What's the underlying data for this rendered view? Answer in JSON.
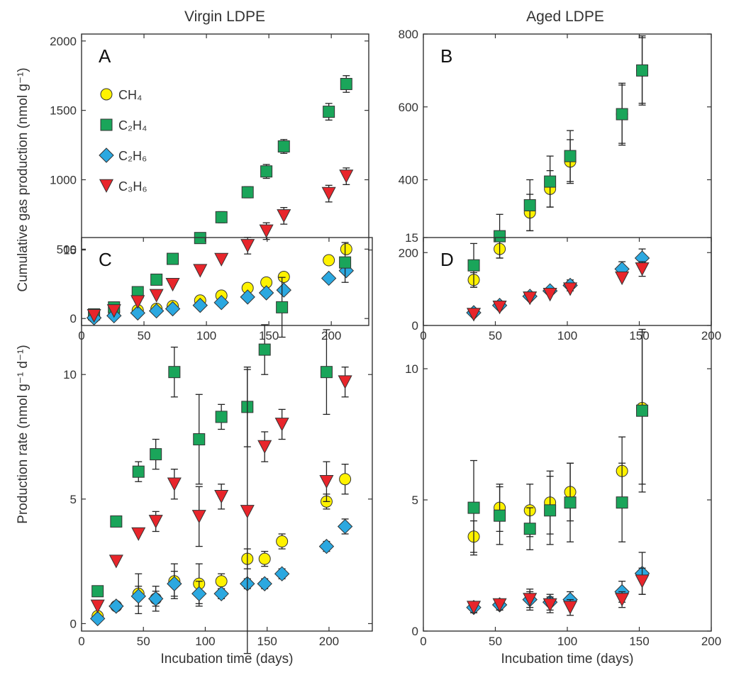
{
  "figure": {
    "column_titles": [
      "Virgin LDPE",
      "Aged LDPE"
    ]
  },
  "colors": {
    "CH4": "#FFF200",
    "C2H4": "#1AA55A",
    "C2H6": "#2BA8E0",
    "C3H6": "#E8252B"
  },
  "chart_data": [
    {
      "panel": "A",
      "type": "scatter",
      "title": "",
      "xlabel": "",
      "ylabel": "Cumulative gas production (nmol g⁻¹)",
      "xlim": [
        0,
        230
      ],
      "ylim": [
        -50,
        2050
      ],
      "xticks": [
        0,
        50,
        100,
        150,
        200
      ],
      "yticks": [
        0,
        500,
        1000,
        1500,
        2000
      ],
      "grid": false,
      "legend": "top-left",
      "x": [
        10,
        26,
        45,
        60,
        73,
        95,
        112,
        133,
        148,
        162,
        198,
        212
      ],
      "series": [
        {
          "name": "CH₄",
          "key": "CH4",
          "marker": "circle",
          "y": [
            10,
            50,
            60,
            70,
            90,
            130,
            165,
            220,
            260,
            300,
            420,
            500
          ],
          "err": [
            0,
            0,
            0,
            0,
            0,
            15,
            20,
            20,
            25,
            30,
            30,
            25
          ]
        },
        {
          "name": "C₂H₄",
          "key": "C2H4",
          "marker": "square",
          "y": [
            30,
            80,
            190,
            280,
            430,
            580,
            730,
            910,
            1060,
            1240,
            1490,
            1690
          ],
          "err": [
            0,
            0,
            0,
            0,
            0,
            30,
            40,
            40,
            50,
            50,
            60,
            60
          ]
        },
        {
          "name": "C₂H₆",
          "key": "C2H6",
          "marker": "diamond",
          "y": [
            5,
            20,
            40,
            55,
            70,
            95,
            115,
            155,
            185,
            205,
            290,
            345
          ],
          "err": [
            0,
            0,
            0,
            0,
            0,
            0,
            0,
            0,
            0,
            0,
            0,
            0
          ]
        },
        {
          "name": "C₃H₆",
          "key": "C3H6",
          "marker": "triangle-down",
          "y": [
            20,
            55,
            120,
            165,
            245,
            345,
            425,
            525,
            630,
            740,
            900,
            1025
          ],
          "err": [
            0,
            0,
            0,
            0,
            0,
            0,
            0,
            60,
            60,
            60,
            60,
            60
          ]
        }
      ]
    },
    {
      "panel": "B",
      "type": "scatter",
      "title": "",
      "xlabel": "",
      "ylabel": "",
      "xlim": [
        0,
        200
      ],
      "ylim": [
        0,
        800
      ],
      "xticks": [
        0,
        50,
        100,
        150,
        200
      ],
      "yticks": [
        0,
        200,
        400,
        600,
        800
      ],
      "grid": false,
      "x": [
        35,
        53,
        74,
        88,
        102,
        138,
        152
      ],
      "series": [
        {
          "name": "CH₄",
          "key": "CH4",
          "marker": "circle",
          "y": [
            125,
            210,
            310,
            375,
            450,
            580,
            700
          ],
          "err": [
            20,
            25,
            50,
            50,
            60,
            80,
            90
          ]
        },
        {
          "name": "C₂H₄",
          "key": "C2H4",
          "marker": "square",
          "y": [
            165,
            245,
            330,
            395,
            465,
            580,
            700
          ],
          "err": [
            60,
            60,
            70,
            70,
            70,
            85,
            95
          ]
        },
        {
          "name": "C₂H₆",
          "key": "C2H6",
          "marker": "diamond",
          "y": [
            35,
            55,
            80,
            95,
            110,
            155,
            185
          ],
          "err": [
            0,
            0,
            0,
            0,
            15,
            20,
            25
          ]
        },
        {
          "name": "C₃H₆",
          "key": "C3H6",
          "marker": "triangle-down",
          "y": [
            30,
            50,
            75,
            85,
            100,
            130,
            155
          ],
          "err": [
            0,
            0,
            0,
            0,
            0,
            0,
            20
          ]
        }
      ]
    },
    {
      "panel": "C",
      "type": "scatter",
      "title": "",
      "xlabel": "Incubation time (days)",
      "ylabel": "Production rate (nmol g⁻¹ d⁻¹)",
      "xlim": [
        0,
        235
      ],
      "ylim": [
        -0.3,
        15.5
      ],
      "xticks": [
        0,
        50,
        100,
        150,
        200
      ],
      "yticks": [
        0,
        5,
        10,
        15
      ],
      "grid": false,
      "x": [
        13,
        28,
        46,
        60,
        75,
        95,
        113,
        134,
        148,
        162,
        198,
        213
      ],
      "series": [
        {
          "name": "CH₄",
          "key": "CH4",
          "marker": "circle",
          "y": [
            0.3,
            0.7,
            1.2,
            1.0,
            1.7,
            1.6,
            1.7,
            2.6,
            2.6,
            3.3,
            4.9,
            5.8
          ],
          "err": [
            0,
            0,
            0.8,
            0.5,
            0.7,
            0.8,
            0.3,
            0.4,
            0.3,
            0.3,
            0.3,
            0.6
          ]
        },
        {
          "name": "C₂H₄",
          "key": "C2H4",
          "marker": "square",
          "y": [
            1.3,
            4.1,
            6.1,
            6.8,
            10.1,
            7.4,
            8.3,
            8.7,
            11.0,
            12.7,
            10.1,
            14.5
          ],
          "err": [
            0,
            0,
            0.4,
            0.6,
            1.0,
            1.8,
            0.5,
            1.6,
            1.0,
            1.2,
            1.7,
            0.8
          ]
        },
        {
          "name": "C₂H₆",
          "key": "C2H6",
          "marker": "diamond",
          "y": [
            0.2,
            0.7,
            1.1,
            1.0,
            1.6,
            1.2,
            1.2,
            1.6,
            1.6,
            2.0,
            3.1,
            3.9
          ],
          "err": [
            0,
            0,
            0.4,
            0.3,
            0.5,
            0.5,
            0.2,
            0.2,
            0.2,
            0.2,
            0.2,
            0.3
          ]
        },
        {
          "name": "C₃H₆",
          "key": "C3H6",
          "marker": "triangle-down",
          "y": [
            0.7,
            2.5,
            3.6,
            4.1,
            5.6,
            4.3,
            5.1,
            4.5,
            7.1,
            8.0,
            5.7,
            9.7
          ],
          "err": [
            0,
            0,
            0,
            0.4,
            0.6,
            1.2,
            0.5,
            5.7,
            0.6,
            0.6,
            0.8,
            0.6
          ]
        }
      ]
    },
    {
      "panel": "D",
      "type": "scatter",
      "title": "",
      "xlabel": "Incubation time (days)",
      "ylabel": "",
      "xlim": [
        0,
        200
      ],
      "ylim": [
        0,
        15
      ],
      "xticks": [
        0,
        50,
        100,
        150,
        200
      ],
      "yticks": [
        0,
        5,
        10,
        15
      ],
      "grid": false,
      "x": [
        35,
        53,
        74,
        88,
        102,
        138,
        152
      ],
      "series": [
        {
          "name": "CH₄",
          "key": "CH4",
          "marker": "circle",
          "y": [
            3.6,
            4.7,
            4.6,
            4.9,
            5.3,
            6.1,
            8.5
          ],
          "err": [
            0.6,
            0.9,
            1.0,
            1.2,
            1.1,
            1.3,
            2.9
          ]
        },
        {
          "name": "C₂H₄",
          "key": "C2H4",
          "marker": "square",
          "y": [
            4.7,
            4.4,
            3.9,
            4.6,
            4.9,
            4.9,
            8.4
          ],
          "err": [
            1.8,
            1.1,
            0.8,
            1.3,
            1.5,
            1.5,
            3.1
          ]
        },
        {
          "name": "C₂H₆",
          "key": "C2H6",
          "marker": "diamond",
          "y": [
            0.9,
            1.0,
            1.2,
            1.1,
            1.2,
            1.5,
            2.2
          ],
          "err": [
            0.2,
            0.2,
            0.3,
            0.3,
            0.3,
            0.4,
            0.8
          ]
        },
        {
          "name": "C₃H₆",
          "key": "C3H6",
          "marker": "triangle-down",
          "y": [
            0.9,
            1.0,
            1.2,
            1.0,
            0.9,
            1.2,
            1.9
          ],
          "err": [
            0.2,
            0.2,
            0.4,
            0.3,
            0.3,
            0.3,
            0.5
          ]
        }
      ]
    }
  ]
}
